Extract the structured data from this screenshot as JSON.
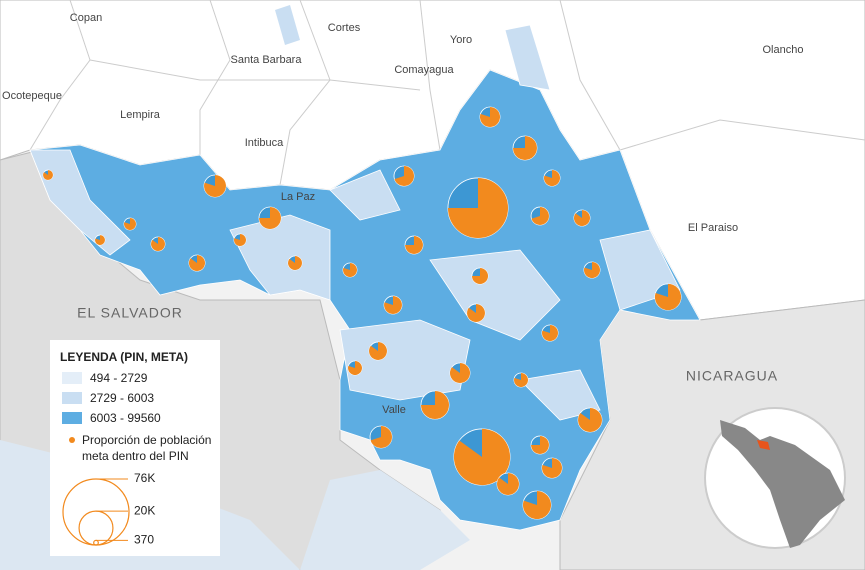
{
  "places": {
    "copan": "Copan",
    "cortes": "Cortes",
    "yoro": "Yoro",
    "olancho": "Olancho",
    "santa_barbara": "Santa Barbara",
    "comayagua": "Comayagua",
    "ocotepeque": "Ocotepeque",
    "lempira": "Lempira",
    "intibuca": "Intibuca",
    "la_paz": "La Paz",
    "el_paraiso": "El Paraiso",
    "valle": "Valle",
    "el_salvador": "EL SALVADOR",
    "nicaragua": "NICARAGUA"
  },
  "legend": {
    "title": "LEYENDA (PIN, META)",
    "classes": [
      "494 - 2729",
      "2729 - 6003",
      "6003 - 99560"
    ],
    "proportion": [
      "Proporción de población",
      "meta dentro del PIN"
    ],
    "sizes": [
      {
        "value": 76000,
        "label": "76K"
      },
      {
        "value": 20000,
        "label": "20K"
      },
      370
    ]
  },
  "pies": [
    {
      "pin": 63000,
      "share": 75
    },
    {
      "pin": 55000,
      "share": 85
    },
    {
      "pin": 8400,
      "share": 80
    },
    {
      "pin": 10000,
      "share": 75
    },
    {
      "pin": 7000,
      "share": 70
    },
    {
      "pin": 4500,
      "share": 80
    },
    {
      "pin": 8400,
      "share": 75
    },
    {
      "pin": 7000,
      "share": 80
    },
    {
      "pin": 5600,
      "share": 75
    },
    {
      "pin": 5600,
      "share": 70
    },
    {
      "pin": 4500,
      "share": 85
    },
    {
      "pin": 4500,
      "share": 75
    },
    {
      "pin": 4500,
      "share": 80
    },
    {
      "pin": 12000,
      "share": 80
    },
    {
      "pin": 13700,
      "share": 75
    },
    {
      "pin": 5600,
      "share": 85
    },
    {
      "pin": 3400,
      "share": 80
    },
    {
      "pin": 7000,
      "share": 85
    },
    {
      "pin": 4500,
      "share": 80
    },
    {
      "pin": 10000,
      "share": 85
    },
    {
      "pin": 13700,
      "share": 80
    },
    {
      "pin": 8400,
      "share": 85
    },
    {
      "pin": 7000,
      "share": 80
    },
    {
      "pin": 5600,
      "share": 75
    },
    {
      "pin": 5600,
      "share": 80
    },
    {
      "pin": 5600,
      "share": 85
    },
    {
      "pin": 3400,
      "share": 80
    },
    {
      "pin": 3400,
      "share": 85
    },
    {
      "pin": 2500,
      "share": 80
    },
    {
      "pin": 3400,
      "share": 85
    },
    {
      "pin": 2500,
      "share": 80
    },
    {
      "pin": 1700,
      "share": 85
    },
    {
      "pin": 1700,
      "share": 80
    },
    {
      "pin": 4500,
      "share": 85
    },
    {
      "pin": 8400,
      "share": 70
    },
    {
      "pin": 3400,
      "share": 80
    }
  ]
}
